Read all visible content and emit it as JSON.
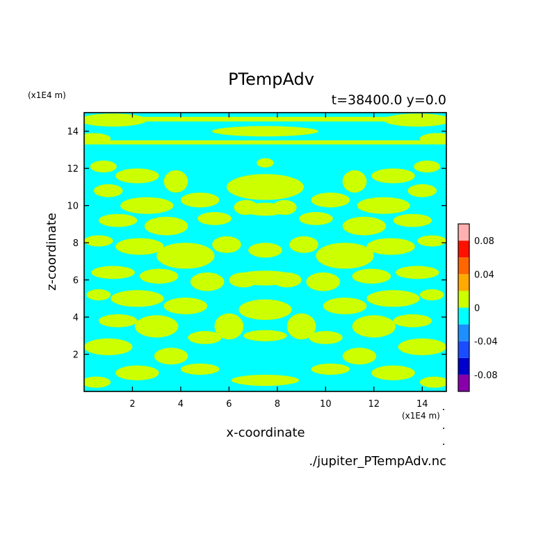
{
  "chart_data": {
    "type": "heatmap",
    "title": "PTempAdv",
    "subtitle": "t=38400.0 y=0.0",
    "xlabel": "x-coordinate",
    "ylabel": "z-coordinate",
    "x_unit": "(x1E4 m)",
    "z_unit": "(x1E4 m)",
    "xlim": [
      0,
      15
    ],
    "ylim": [
      0,
      15
    ],
    "xticks": [
      2,
      4,
      6,
      8,
      10,
      12,
      14
    ],
    "yticks": [
      2,
      4,
      6,
      8,
      10,
      12,
      14
    ],
    "xtick_labels": [
      "2",
      "4",
      "6",
      "8",
      "10",
      "12",
      "14"
    ],
    "ytick_labels": [
      "2",
      "4",
      "6",
      "8",
      "10",
      "12",
      "14"
    ],
    "source_file": "./jupiter_PTempAdv.nc",
    "field_note": "Field is mirror-symmetric about x = 7.5; values alternate between the 0 to 0.02 band (yellow-green) and the -0.02 to 0 band (cyan).",
    "colorbar": {
      "levels": [
        -0.1,
        -0.08,
        -0.06,
        -0.04,
        -0.02,
        0,
        0.02,
        0.04,
        0.06,
        0.08,
        0.1
      ],
      "colors": [
        "#8800aa",
        "#0000cc",
        "#1a4dff",
        "#1e8fff",
        "#00ffff",
        "#ccff00",
        "#ffaa00",
        "#ff6600",
        "#ff1100",
        "#ffb0b0"
      ],
      "tick_values": [
        -0.08,
        -0.04,
        0,
        0.04,
        0.08
      ],
      "tick_labels": [
        "-0.08",
        "-0.04",
        "0",
        "0.04",
        "0.08"
      ]
    }
  }
}
